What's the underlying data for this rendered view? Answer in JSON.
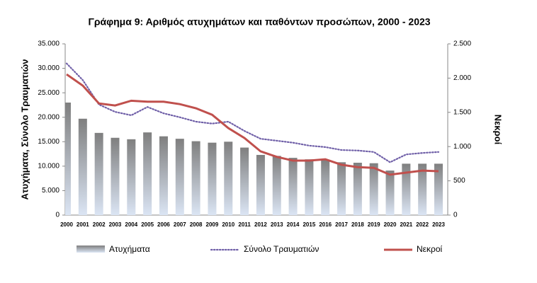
{
  "chart_data": {
    "type": "bar_line",
    "title": "Γράφημα 9: Αριθμός ατυχημάτων και παθόντων προσώπων, 2000 - 2023",
    "y_label": "Ατυχήματα, Σύνολο Τραυματιών",
    "y2_label": "Νεκροί",
    "categories": [
      "2000",
      "2001",
      "2002",
      "2003",
      "2004",
      "2005",
      "2006",
      "2007",
      "2008",
      "2009",
      "2010",
      "2011",
      "2012",
      "2013",
      "2014",
      "2015",
      "2016",
      "2017",
      "2018",
      "2019",
      "2020",
      "2021",
      "2022",
      "2023"
    ],
    "series": [
      {
        "name": "Ατυχήματα",
        "type": "bar",
        "color": "#808080",
        "values": [
          23000,
          19700,
          16800,
          15800,
          15500,
          16900,
          16100,
          15600,
          15100,
          14800,
          15000,
          13800,
          12300,
          12100,
          11700,
          11400,
          11300,
          10800,
          10700,
          10600,
          9100,
          10500,
          10500,
          10500
        ]
      },
      {
        "name": "Σύνολο Τραυματιών",
        "type": "line",
        "style": "dotted",
        "color": "#7060a8",
        "values": [
          31000,
          27600,
          22600,
          21100,
          20400,
          22100,
          20800,
          20000,
          19100,
          18700,
          19100,
          17200,
          15600,
          15200,
          14800,
          14200,
          13900,
          13300,
          13200,
          12900,
          10800,
          12400,
          12700,
          12900
        ]
      },
      {
        "name": "Νεκροί",
        "type": "line",
        "style": "solid",
        "color": "#c0504d",
        "axis": "y2",
        "values": [
          2055,
          1890,
          1630,
          1600,
          1670,
          1655,
          1655,
          1620,
          1560,
          1465,
          1270,
          1125,
          930,
          850,
          795,
          795,
          815,
          735,
          700,
          690,
          590,
          620,
          650,
          640
        ]
      }
    ],
    "ylim": [
      0,
      35000
    ],
    "yticks": [
      0,
      {
        "value": 5000,
        "label": "5.000"
      },
      {
        "value": 10000,
        "label": "10.000"
      },
      {
        "value": 15000,
        "label": "15.000"
      },
      {
        "value": 20000,
        "label": "20.000"
      },
      {
        "value": 25000,
        "label": "25.000"
      },
      {
        "value": 30000,
        "label": "30.000"
      },
      {
        "value": 35000,
        "label": "35.000"
      }
    ],
    "y2lim": [
      0,
      2500
    ],
    "y2ticks": [
      0,
      500,
      {
        "value": 1000,
        "label": "1.000"
      },
      {
        "value": 1500,
        "label": "1.500"
      },
      {
        "value": 2000,
        "label": "2.000"
      },
      {
        "value": 2500,
        "label": "2.500"
      }
    ],
    "legend": "bottom"
  }
}
